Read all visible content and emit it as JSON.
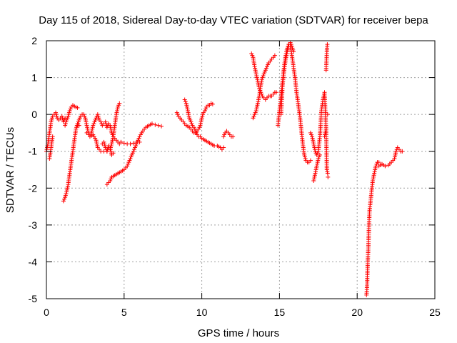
{
  "chart_data": {
    "type": "scatter",
    "title": "Day 115 of 2018, Sidereal Day-to-day VTEC variation (SDTVAR) for receiver bepa",
    "xlabel": "GPS time / hours",
    "ylabel": "SDTVAR / TECUs",
    "xlim": [
      0,
      25
    ],
    "ylim": [
      -5,
      2
    ],
    "xticks": [
      0,
      5,
      10,
      15,
      20,
      25
    ],
    "yticks": [
      -5,
      -4,
      -3,
      -2,
      -1,
      0,
      1,
      2
    ],
    "grid": true,
    "marker": "+",
    "colors": {
      "points": "#ff0000",
      "grid": "#a0a0a0",
      "axis": "#000000"
    },
    "series": [
      {
        "x": [
          0.0,
          0.1,
          0.2,
          0.3,
          0.4,
          0.5,
          0.6,
          0.7,
          0.8,
          0.9,
          1.0,
          1.1,
          1.2
        ],
        "y": [
          -1.0,
          -0.8,
          -0.5,
          -0.2,
          -0.05,
          0.0,
          0.05,
          -0.1,
          -0.15,
          -0.1,
          -0.05,
          -0.2,
          -0.1
        ]
      },
      {
        "x": [
          0.2,
          0.25,
          0.3,
          0.35,
          0.4
        ],
        "y": [
          -1.2,
          -1.05,
          -0.9,
          -0.75,
          -0.6
        ]
      },
      {
        "x": [
          1.1,
          1.2,
          1.3,
          1.4,
          1.5,
          1.6,
          1.7,
          1.8,
          1.9,
          2.0,
          2.1
        ],
        "y": [
          -2.35,
          -2.25,
          -2.1,
          -1.9,
          -1.6,
          -1.3,
          -1.0,
          -0.7,
          -0.4,
          -0.25,
          -0.3
        ]
      },
      {
        "x": [
          1.2,
          1.3,
          1.4,
          1.5,
          1.6,
          1.7,
          1.8,
          1.9,
          2.0
        ],
        "y": [
          -0.3,
          -0.15,
          -0.05,
          0.1,
          0.2,
          0.25,
          0.22,
          0.2,
          0.18
        ]
      },
      {
        "x": [
          2.0,
          2.1,
          2.2,
          2.3,
          2.4,
          2.5,
          2.6,
          2.7,
          2.8,
          2.9,
          3.0,
          3.1,
          3.2,
          3.3,
          3.4,
          3.5,
          3.6,
          3.7,
          3.8,
          3.9,
          4.0,
          4.1,
          4.2,
          4.3,
          4.4,
          4.5,
          4.6,
          4.7,
          4.8
        ],
        "y": [
          -0.3,
          -0.15,
          -0.05,
          0.0,
          0.0,
          -0.1,
          -0.3,
          -0.5,
          -0.55,
          -0.5,
          -0.3,
          -0.2,
          -0.1,
          0.0,
          -0.15,
          -0.2,
          -0.3,
          -0.25,
          -0.2,
          -0.35,
          -0.25,
          -0.3,
          -0.5,
          -0.6,
          -0.65,
          -0.7,
          -0.75,
          -0.8,
          -0.75
        ]
      },
      {
        "x": [
          2.6,
          2.8,
          3.0,
          3.2,
          3.3,
          3.5,
          3.7,
          3.9,
          4.0,
          4.1,
          4.2,
          4.3,
          4.4,
          4.5,
          4.6,
          4.7
        ],
        "y": [
          -0.5,
          -0.6,
          -0.55,
          -0.7,
          -0.9,
          -1.0,
          -1.0,
          -1.0,
          -0.9,
          -0.95,
          -0.8,
          -0.6,
          -0.3,
          0.0,
          0.2,
          0.3
        ]
      },
      {
        "x": [
          3.6,
          3.7,
          3.8,
          3.9,
          4.0,
          4.1,
          4.2,
          4.3
        ],
        "y": [
          -0.8,
          -0.75,
          -0.9,
          -1.0,
          -0.85,
          -0.9,
          -1.1,
          -1.05
        ]
      },
      {
        "x": [
          3.9,
          4.0,
          4.1,
          4.2,
          4.4,
          4.6,
          4.8,
          5.0,
          5.2,
          5.4,
          5.6,
          5.8,
          6.0,
          6.2,
          6.4,
          6.6,
          6.8,
          7.0,
          7.2,
          7.4
        ],
        "y": [
          -1.9,
          -1.85,
          -1.8,
          -1.7,
          -1.65,
          -1.6,
          -1.55,
          -1.5,
          -1.4,
          -1.2,
          -1.0,
          -0.8,
          -0.6,
          -0.45,
          -0.35,
          -0.3,
          -0.25,
          -0.28,
          -0.3,
          -0.32
        ]
      },
      {
        "x": [
          4.8,
          5.0,
          5.2,
          5.4,
          5.6,
          5.8,
          6.0
        ],
        "y": [
          -0.75,
          -0.78,
          -0.8,
          -0.8,
          -0.78,
          -0.75,
          -0.75
        ]
      },
      {
        "x": [
          8.4,
          8.5,
          8.6,
          8.7,
          8.8,
          8.9,
          9.0,
          9.1,
          9.2,
          9.3,
          9.4,
          9.5,
          9.6,
          9.7,
          9.8,
          9.9,
          10.0,
          10.1,
          10.2,
          10.3,
          10.4,
          10.5,
          10.6,
          10.7
        ],
        "y": [
          0.05,
          -0.05,
          -0.1,
          -0.15,
          -0.2,
          -0.25,
          -0.3,
          -0.32,
          -0.35,
          -0.4,
          -0.45,
          -0.5,
          -0.5,
          -0.45,
          -0.4,
          -0.3,
          -0.1,
          0.05,
          0.1,
          0.2,
          0.25,
          0.25,
          0.3,
          0.28
        ]
      },
      {
        "x": [
          8.9,
          9.0,
          9.1,
          9.2,
          9.3,
          9.4,
          9.5,
          9.6,
          9.7,
          9.8,
          9.9,
          10.0,
          10.2,
          10.4,
          10.6,
          10.8,
          11.0,
          11.2,
          11.3,
          11.4
        ],
        "y": [
          0.4,
          0.3,
          0.1,
          -0.1,
          -0.2,
          -0.3,
          -0.35,
          -0.45,
          -0.55,
          -0.6,
          -0.6,
          -0.65,
          -0.7,
          -0.75,
          -0.8,
          -0.85,
          -0.85,
          -0.9,
          -0.95,
          -0.9
        ]
      },
      {
        "x": [
          11.4,
          11.5,
          11.6,
          11.7,
          11.8,
          11.9,
          12.0
        ],
        "y": [
          -0.6,
          -0.5,
          -0.45,
          -0.5,
          -0.55,
          -0.6,
          -0.6
        ]
      },
      {
        "x": [
          13.2,
          13.3,
          13.4,
          13.5,
          13.6,
          13.7,
          13.8,
          13.9,
          14.0,
          14.1,
          14.2,
          14.3,
          14.4,
          14.5,
          14.6,
          14.7,
          14.8
        ],
        "y": [
          1.65,
          1.55,
          1.3,
          1.1,
          0.9,
          0.7,
          0.6,
          0.5,
          0.45,
          0.4,
          0.45,
          0.5,
          0.5,
          0.5,
          0.55,
          0.6,
          0.6
        ]
      },
      {
        "x": [
          13.3,
          13.4,
          13.5,
          13.6,
          13.7,
          13.8,
          13.9,
          14.0,
          14.1,
          14.2,
          14.3,
          14.4,
          14.5,
          14.6,
          14.7
        ],
        "y": [
          -0.1,
          0.0,
          0.1,
          0.3,
          0.5,
          0.8,
          1.0,
          1.1,
          1.2,
          1.3,
          1.4,
          1.45,
          1.5,
          1.55,
          1.6
        ]
      },
      {
        "x": [
          14.9,
          15.0,
          15.1,
          15.2,
          15.3,
          15.4,
          15.5,
          15.6,
          15.7,
          15.8,
          15.9,
          16.0,
          16.1,
          16.2,
          16.3,
          16.4,
          16.5,
          16.6,
          16.7,
          16.8,
          16.9,
          17.0
        ],
        "y": [
          -0.3,
          0.1,
          0.5,
          0.9,
          1.3,
          1.6,
          1.8,
          1.9,
          1.85,
          1.6,
          1.3,
          1.0,
          0.6,
          0.3,
          0.0,
          -0.4,
          -0.8,
          -1.1,
          -1.25,
          -1.3,
          -1.3,
          -1.25
        ]
      },
      {
        "x": [
          15.1,
          15.2,
          15.3,
          15.4,
          15.5,
          15.6,
          15.7,
          15.8,
          15.9
        ],
        "y": [
          0.0,
          0.8,
          1.2,
          1.5,
          1.7,
          1.9,
          1.95,
          1.85,
          1.7
        ]
      },
      {
        "x": [
          17.0,
          17.1,
          17.2,
          17.3,
          17.4,
          17.5,
          17.6,
          17.7,
          17.8,
          17.9,
          18.0
        ],
        "y": [
          -0.5,
          -0.6,
          -0.8,
          -1.0,
          -1.1,
          -1.0,
          -0.6,
          0.1,
          0.4,
          0.6,
          -0.4
        ]
      },
      {
        "x": [
          17.2,
          17.3,
          17.4,
          17.5,
          17.6
        ],
        "y": [
          -1.8,
          -1.6,
          -1.4,
          -1.2,
          -1.1
        ]
      },
      {
        "x": [
          18.0,
          18.02,
          18.04,
          18.06,
          18.08,
          18.1,
          18.12
        ],
        "y": [
          1.2,
          1.4,
          1.6,
          1.8,
          1.9,
          0.0,
          -1.7
        ]
      },
      {
        "x": [
          17.9,
          17.95,
          18.0,
          18.05,
          18.1
        ],
        "y": [
          -0.6,
          -0.5,
          -0.4,
          -1.5,
          -1.6
        ]
      },
      {
        "x": [
          20.6,
          20.62,
          20.64,
          20.66,
          20.68,
          20.7,
          20.72,
          20.74,
          20.76,
          20.78,
          20.8,
          20.85,
          20.9,
          20.95,
          21.0,
          21.1,
          21.2,
          21.3,
          21.4
        ],
        "y": [
          -4.9,
          -4.8,
          -4.6,
          -4.3,
          -4.0,
          -3.8,
          -3.6,
          -3.3,
          -3.0,
          -2.8,
          -2.6,
          -2.4,
          -2.2,
          -2.0,
          -1.8,
          -1.6,
          -1.4,
          -1.3,
          -1.3
        ]
      },
      {
        "x": [
          21.4,
          21.6,
          21.8,
          22.0,
          22.2,
          22.4,
          22.5,
          22.6,
          22.7,
          22.8,
          22.9
        ],
        "y": [
          -1.4,
          -1.35,
          -1.4,
          -1.38,
          -1.3,
          -1.2,
          -1.0,
          -0.9,
          -0.95,
          -1.0,
          -1.0
        ]
      }
    ]
  }
}
